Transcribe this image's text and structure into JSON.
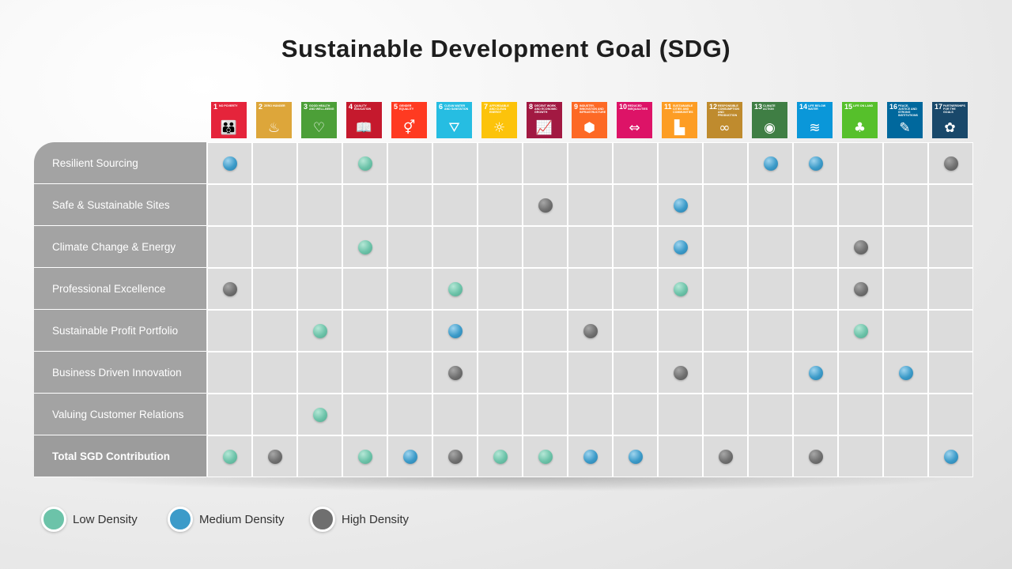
{
  "title": "Sustainable Development Goal (SDG)",
  "sdgs": [
    {
      "num": "1",
      "name": "No Poverty",
      "color": "#e5243b",
      "icon": "people-icon",
      "glyph": "👪"
    },
    {
      "num": "2",
      "name": "Zero Hunger",
      "color": "#dda63a",
      "icon": "bowl-icon",
      "glyph": "♨"
    },
    {
      "num": "3",
      "name": "Good Health and Well-Being",
      "color": "#4c9f38",
      "icon": "heartbeat-icon",
      "glyph": "♡"
    },
    {
      "num": "4",
      "name": "Quality Education",
      "color": "#c5192d",
      "icon": "book-icon",
      "glyph": "📖"
    },
    {
      "num": "5",
      "name": "Gender Equality",
      "color": "#ff3a21",
      "icon": "gender-icon",
      "glyph": "⚥"
    },
    {
      "num": "6",
      "name": "Clean Water and Sanitation",
      "color": "#26bde2",
      "icon": "water-icon",
      "glyph": "⛛"
    },
    {
      "num": "7",
      "name": "Affordable and Clean Energy",
      "color": "#fcc30b",
      "icon": "sun-icon",
      "glyph": "☼"
    },
    {
      "num": "8",
      "name": "Decent Work and Economic Growth",
      "color": "#a21942",
      "icon": "growth-chart-icon",
      "glyph": "📈"
    },
    {
      "num": "9",
      "name": "Industry, Innovation and Infrastructure",
      "color": "#fd6925",
      "icon": "cubes-icon",
      "glyph": "⬢"
    },
    {
      "num": "10",
      "name": "Reduced Inequalities",
      "color": "#dd1367",
      "icon": "equality-icon",
      "glyph": "⇔"
    },
    {
      "num": "11",
      "name": "Sustainable Cities and Communities",
      "color": "#fd9d24",
      "icon": "city-icon",
      "glyph": "▙"
    },
    {
      "num": "12",
      "name": "Responsible Consumption and Production",
      "color": "#bf8b2e",
      "icon": "infinity-icon",
      "glyph": "∞"
    },
    {
      "num": "13",
      "name": "Climate Action",
      "color": "#3f7e44",
      "icon": "eye-icon",
      "glyph": "◉"
    },
    {
      "num": "14",
      "name": "Life Below Water",
      "color": "#0a97d9",
      "icon": "fish-icon",
      "glyph": "≋"
    },
    {
      "num": "15",
      "name": "Life on Land",
      "color": "#56c02b",
      "icon": "tree-icon",
      "glyph": "♣"
    },
    {
      "num": "16",
      "name": "Peace, Justice and Strong Institutions",
      "color": "#00689d",
      "icon": "dove-icon",
      "glyph": "✎"
    },
    {
      "num": "17",
      "name": "Partnerships for the Goals",
      "color": "#19486a",
      "icon": "flower-icon",
      "glyph": "✿"
    }
  ],
  "rows": [
    {
      "label": "Resilient Sourcing",
      "cells": [
        "medium",
        "",
        "",
        "low",
        "",
        "",
        "",
        "",
        "",
        "",
        "",
        "",
        "medium",
        "medium",
        "",
        "",
        "high"
      ]
    },
    {
      "label": "Safe & Sustainable Sites",
      "cells": [
        "",
        "",
        "",
        "",
        "",
        "",
        "",
        "high",
        "",
        "",
        "medium",
        "",
        "",
        "",
        "",
        "",
        ""
      ]
    },
    {
      "label": "Climate Change & Energy",
      "cells": [
        "",
        "",
        "",
        "low",
        "",
        "",
        "",
        "",
        "",
        "",
        "medium",
        "",
        "",
        "",
        "high",
        "",
        ""
      ]
    },
    {
      "label": "Professional Excellence",
      "cells": [
        "high",
        "",
        "",
        "",
        "",
        "low",
        "",
        "",
        "",
        "",
        "low",
        "",
        "",
        "",
        "high",
        "",
        ""
      ]
    },
    {
      "label": "Sustainable Profit Portfolio",
      "cells": [
        "",
        "",
        "low",
        "",
        "",
        "medium",
        "",
        "",
        "high",
        "",
        "",
        "",
        "",
        "",
        "low",
        "",
        ""
      ]
    },
    {
      "label": "Business Driven Innovation",
      "cells": [
        "",
        "",
        "",
        "",
        "",
        "high",
        "",
        "",
        "",
        "",
        "high",
        "",
        "",
        "medium",
        "",
        "medium",
        ""
      ]
    },
    {
      "label": "Valuing Customer Relations",
      "cells": [
        "",
        "",
        "low",
        "",
        "",
        "",
        "",
        "",
        "",
        "",
        "",
        "",
        "",
        "",
        "",
        "",
        ""
      ]
    },
    {
      "label": "Total SGD Contribution",
      "total": true,
      "cells": [
        "low",
        "high",
        "",
        "low",
        "medium",
        "high",
        "low",
        "low",
        "medium",
        "medium",
        "",
        "high",
        "",
        "high",
        "",
        "",
        "medium"
      ]
    }
  ],
  "legend": [
    {
      "key": "low",
      "label": "Low Density",
      "color": "#6cc3a9"
    },
    {
      "key": "medium",
      "label": "Medium Density",
      "color": "#3c9bc9"
    },
    {
      "key": "high",
      "label": "High Density",
      "color": "#6f6f6f"
    }
  ]
}
